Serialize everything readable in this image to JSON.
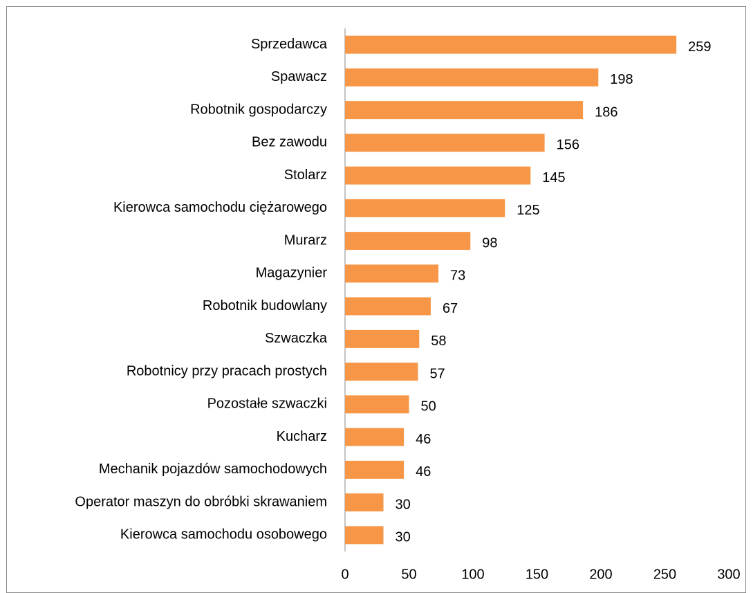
{
  "chart_data": {
    "type": "bar",
    "orientation": "horizontal",
    "color": "#f79646",
    "categories": [
      "Sprzedawca",
      "Spawacz",
      "Robotnik gospodarczy",
      "Bez zawodu",
      "Stolarz",
      "Kierowca samochodu ciężarowego",
      "Murarz",
      "Magazynier",
      "Robotnik budowlany",
      "Szwaczka",
      "Robotnicy przy pracach prostych",
      "Pozostałe szwaczki",
      "Kucharz",
      "Mechanik pojazdów samochodowych",
      "Operator maszyn do obróbki skrawaniem",
      "Kierowca samochodu osobowego"
    ],
    "values": [
      259,
      198,
      186,
      156,
      145,
      125,
      98,
      73,
      67,
      58,
      57,
      50,
      46,
      46,
      30,
      30
    ],
    "xlim": [
      0,
      300
    ],
    "xticks": [
      0,
      50,
      100,
      150,
      200,
      250,
      300
    ],
    "grid": false
  }
}
